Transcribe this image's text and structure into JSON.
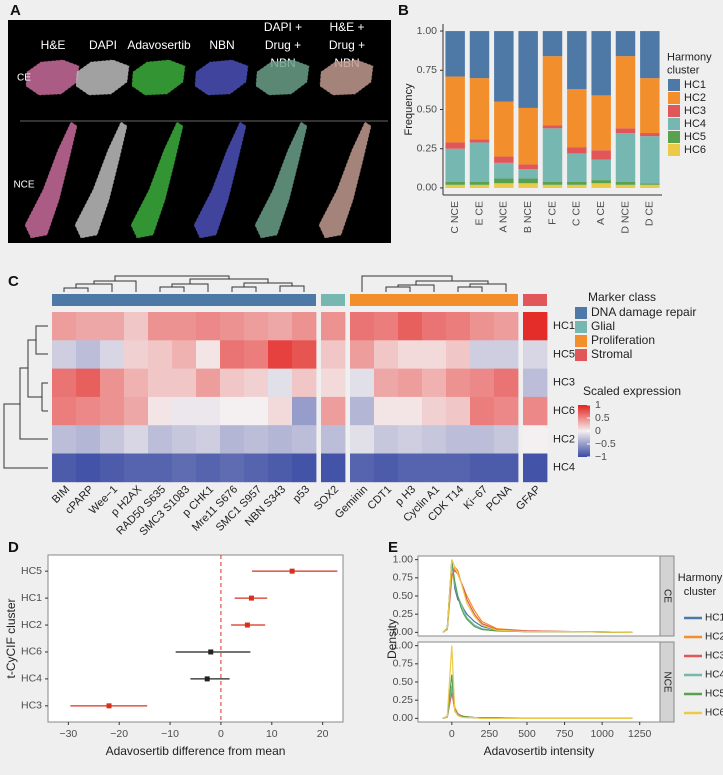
{
  "figure_a": {
    "panel_label": "A",
    "columns": [
      "H&E",
      "DAPI",
      "Adavosertib",
      "NBN",
      "DAPI +\nDrug +\nNBN",
      "H&E +\nDrug +\nNBN"
    ],
    "rows": [
      "CE",
      "NCE"
    ]
  },
  "chart_data": [
    {
      "type": "bar",
      "panel_label": "B",
      "stacked": true,
      "ylabel": "Frequency",
      "legend_title": "Harmony\ncluster",
      "categories": [
        "C NCE",
        "E CE",
        "A NCE",
        "B NCE",
        "F CE",
        "C CE",
        "A CE",
        "D NCE",
        "D CE"
      ],
      "series": [
        {
          "name": "HC1",
          "color": "#4e79a7",
          "values": [
            0.29,
            0.3,
            0.45,
            0.49,
            0.16,
            0.37,
            0.41,
            0.16,
            0.3
          ]
        },
        {
          "name": "HC2",
          "color": "#f28e2b",
          "values": [
            0.42,
            0.39,
            0.35,
            0.36,
            0.44,
            0.37,
            0.35,
            0.46,
            0.35
          ]
        },
        {
          "name": "HC3",
          "color": "#e15759",
          "values": [
            0.04,
            0.02,
            0.04,
            0.03,
            0.02,
            0.04,
            0.06,
            0.03,
            0.02
          ]
        },
        {
          "name": "HC4",
          "color": "#76b7b2",
          "values": [
            0.21,
            0.25,
            0.1,
            0.06,
            0.34,
            0.18,
            0.13,
            0.31,
            0.3
          ]
        },
        {
          "name": "HC5",
          "color": "#59a14f",
          "values": [
            0.02,
            0.02,
            0.03,
            0.03,
            0.02,
            0.02,
            0.02,
            0.02,
            0.01
          ]
        },
        {
          "name": "HC6",
          "color": "#edc948",
          "values": [
            0.02,
            0.02,
            0.03,
            0.03,
            0.02,
            0.02,
            0.03,
            0.02,
            0.02
          ]
        }
      ],
      "ylim": [
        -0.045,
        1.045
      ],
      "yticks": [
        {
          "value": 0,
          "label": "0.00"
        },
        {
          "value": 0.25,
          "label": "0.25"
        },
        {
          "value": 0.5,
          "label": "0.50"
        },
        {
          "value": 0.75,
          "label": "0.75"
        },
        {
          "value": 1,
          "label": "1.00"
        }
      ]
    },
    {
      "type": "heatmap",
      "panel_label": "C",
      "column_annotation_title": "Marker class",
      "column_groups": [
        {
          "name": "DNA damage repair",
          "color": "#4e79a7",
          "columns": [
            "BIM",
            "cPARP",
            "Wee−1",
            "p H2AX",
            "RAD50 S635",
            "SMC3 S1083",
            "p CHK1",
            "Mre11 S676",
            "SMC1 S957",
            "NBN S343",
            "p53"
          ]
        },
        {
          "name": "Glial",
          "color": "#76b7b2",
          "columns": [
            "SOX2"
          ]
        },
        {
          "name": "Proliferation",
          "color": "#f28e2b",
          "columns": [
            "Geminin",
            "CDT1",
            "p H3",
            "Cyclin A1",
            "CDK T14",
            "Ki−67",
            "PCNA"
          ]
        },
        {
          "name": "Stromal",
          "color": "#e15759",
          "columns": [
            "GFAP"
          ]
        }
      ],
      "rows": [
        "HC1",
        "HC5",
        "HC3",
        "HC6",
        "HC2",
        "HC4"
      ],
      "values": [
        [
          0.4,
          0.35,
          0.35,
          0.2,
          0.45,
          0.45,
          0.5,
          0.45,
          0.4,
          0.35,
          0.45,
          0.45,
          0.6,
          0.55,
          0.7,
          0.6,
          0.55,
          0.45,
          0.4,
          0.95
        ],
        [
          -0.2,
          -0.3,
          -0.15,
          0.15,
          0.2,
          0.3,
          0.05,
          0.6,
          0.55,
          0.85,
          0.75,
          0.2,
          0.4,
          0.2,
          0.1,
          0.1,
          0.2,
          -0.2,
          -0.2,
          -0.15
        ],
        [
          0.6,
          0.7,
          0.45,
          0.3,
          0.2,
          0.2,
          0.4,
          0.2,
          0.15,
          -0.1,
          0.2,
          0.1,
          -0.1,
          0.35,
          0.4,
          0.3,
          0.45,
          0.5,
          0.6,
          -0.3
        ],
        [
          0.55,
          0.5,
          0.45,
          0.35,
          0.05,
          -0.05,
          -0.05,
          0,
          0,
          0.1,
          -0.5,
          0.4,
          -0.35,
          0.05,
          0.05,
          0.15,
          0.2,
          0.55,
          0.5,
          0.5
        ],
        [
          -0.3,
          -0.35,
          -0.25,
          -0.15,
          -0.3,
          -0.25,
          -0.2,
          -0.35,
          -0.3,
          -0.35,
          -0.3,
          -0.3,
          -0.1,
          -0.25,
          -0.2,
          -0.25,
          -0.3,
          -0.3,
          -0.25,
          0
        ],
        [
          -0.9,
          -0.95,
          -0.9,
          -0.85,
          -0.85,
          -0.8,
          -0.85,
          -0.8,
          -0.85,
          -0.9,
          -0.95,
          -0.95,
          -0.85,
          -0.9,
          -0.85,
          -0.85,
          -0.85,
          -0.9,
          -0.9,
          -0.95
        ]
      ],
      "colorbar": {
        "title": "Scaled expression",
        "lim": [
          -1,
          1
        ],
        "colors": [
          "#3a4ba3",
          "#f4eff0",
          "#e3221f"
        ],
        "ticks": [
          1,
          0.5,
          0,
          {
            "value": -0.5,
            "label": "−0.5"
          },
          {
            "value": -1,
            "label": "−1"
          }
        ]
      }
    },
    {
      "type": "forest",
      "panel_label": "D",
      "xlabel": "Adavosertib difference from mean",
      "ylabel": "t-CyCIF cluster",
      "categories": [
        "HC5",
        "HC1",
        "HC2",
        "HC6",
        "HC4",
        "HC3"
      ],
      "values": [
        14,
        6,
        5.2,
        -2,
        -2.7,
        -22
      ],
      "lower": [
        6.1,
        2.7,
        2,
        -8.9,
        -6,
        -29.6
      ],
      "upper": [
        22.9,
        9.1,
        8.7,
        5.8,
        1.7,
        -14.5
      ],
      "colors": [
        "#d7301f",
        "#d7301f",
        "#d7301f",
        "#222222",
        "#222222",
        "#d7301f"
      ],
      "reference_line": 0,
      "reference_color": "#e0302a",
      "xlim": [
        -34,
        24
      ],
      "xticks": [
        {
          "value": -30,
          "label": "−30"
        },
        {
          "value": -20,
          "label": "−20"
        },
        {
          "value": -10,
          "label": "−10"
        },
        0,
        10,
        20
      ]
    },
    {
      "type": "density",
      "panel_label": "E",
      "xlabel": "Adavosertib intensity",
      "ylabel": "Density",
      "legend_title": "Harmony\ncluster",
      "facets": [
        "CE",
        "NCE"
      ],
      "x": [
        -60,
        -30,
        0,
        20,
        40,
        60,
        80,
        100,
        150,
        200,
        300,
        500,
        800,
        1200
      ],
      "series": [
        {
          "name": "HC1",
          "color": "#4e79a7",
          "values": [
            [
              0,
              0.05,
              1.0,
              0.6,
              0.45,
              0.4,
              0.32,
              0.25,
              0.15,
              0.08,
              0.03,
              0.01,
              0.01,
              0
            ],
            [
              0,
              0.02,
              0.42,
              0.12,
              0.05,
              0.03,
              0.02,
              0.02,
              0.01,
              0.01,
              0,
              0,
              0,
              0
            ]
          ]
        },
        {
          "name": "HC2",
          "color": "#f28e2b",
          "values": [
            [
              0,
              0.05,
              0.75,
              0.9,
              0.85,
              0.7,
              0.6,
              0.5,
              0.3,
              0.15,
              0.05,
              0.02,
              0.01,
              0
            ],
            [
              0,
              0.02,
              0.38,
              0.15,
              0.07,
              0.04,
              0.03,
              0.02,
              0.01,
              0.01,
              0,
              0,
              0,
              0
            ]
          ]
        },
        {
          "name": "HC3",
          "color": "#e15759",
          "values": [
            [
              0,
              0.04,
              0.8,
              0.85,
              0.8,
              0.7,
              0.6,
              0.45,
              0.25,
              0.12,
              0.04,
              0.02,
              0.01,
              0
            ],
            [
              0,
              0.02,
              0.35,
              0.13,
              0.06,
              0.04,
              0.02,
              0.02,
              0.01,
              0.01,
              0,
              0,
              0,
              0
            ]
          ]
        },
        {
          "name": "HC4",
          "color": "#76b7b2",
          "values": [
            [
              0,
              0.05,
              0.95,
              0.65,
              0.5,
              0.4,
              0.3,
              0.2,
              0.1,
              0.05,
              0.02,
              0.01,
              0.01,
              0
            ],
            [
              0,
              0.02,
              0.45,
              0.12,
              0.05,
              0.03,
              0.02,
              0.01,
              0.01,
              0,
              0,
              0,
              0,
              0
            ]
          ]
        },
        {
          "name": "HC5",
          "color": "#59a14f",
          "values": [
            [
              0,
              0.06,
              0.98,
              0.7,
              0.5,
              0.35,
              0.25,
              0.18,
              0.08,
              0.04,
              0.02,
              0.01,
              0.01,
              0
            ],
            [
              0,
              0.03,
              0.6,
              0.1,
              0.04,
              0.03,
              0.02,
              0.02,
              0.01,
              0.01,
              0.01,
              0,
              0,
              0
            ]
          ]
        },
        {
          "name": "HC6",
          "color": "#edc948",
          "values": [
            [
              0,
              0.05,
              1.0,
              0.9,
              0.8,
              0.7,
              0.55,
              0.4,
              0.22,
              0.1,
              0.03,
              0.01,
              0.01,
              0
            ],
            [
              0,
              0.03,
              1.0,
              0.1,
              0.04,
              0.02,
              0.01,
              0.01,
              0.01,
              0,
              0,
              0,
              0,
              0
            ]
          ]
        }
      ],
      "xlim": [
        -225,
        1385
      ],
      "xticks": [
        0,
        250,
        500,
        750,
        1000,
        1250
      ],
      "ylim": [
        -0.05,
        1.05
      ],
      "yticks": [
        {
          "value": 0,
          "label": "0.00"
        },
        {
          "value": 0.25,
          "label": "0.25"
        },
        {
          "value": 0.5,
          "label": "0.50"
        },
        {
          "value": 0.75,
          "label": "0.75"
        },
        {
          "value": 1,
          "label": "1.00"
        }
      ]
    }
  ]
}
